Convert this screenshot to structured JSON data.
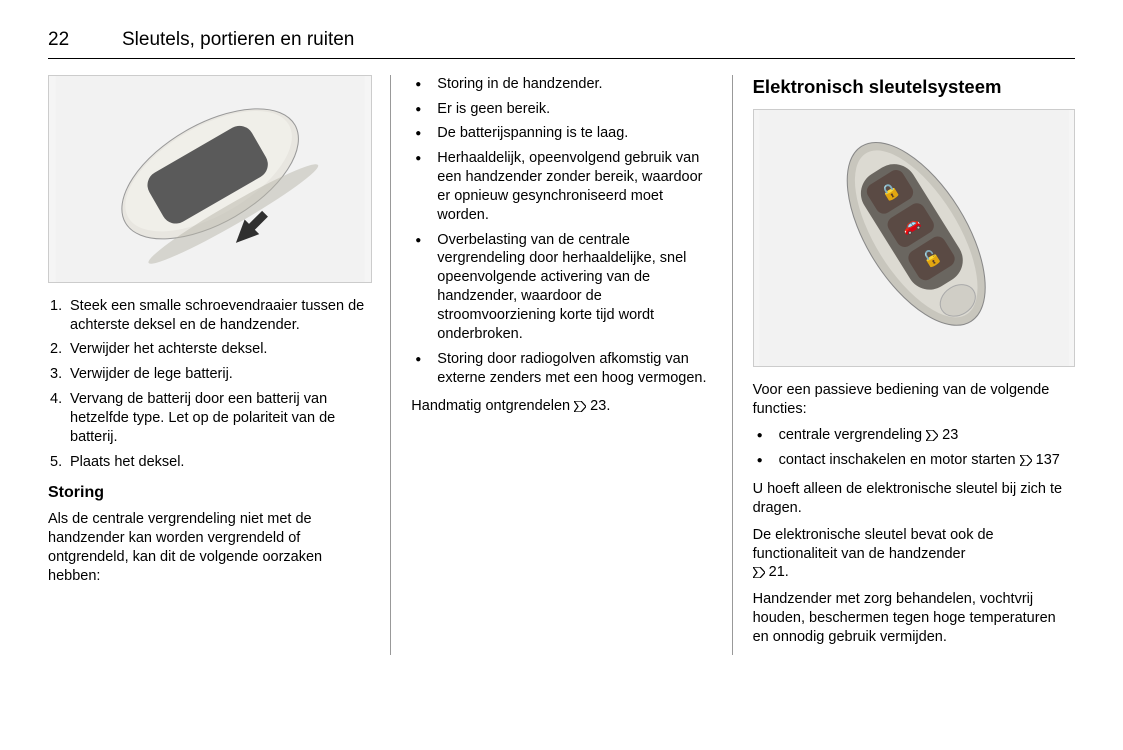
{
  "page_number": "22",
  "chapter_title": "Sleutels, portieren en ruiten",
  "col1": {
    "fig_alt": "key fob battery cover illustration",
    "steps": [
      "Steek een smalle schroeven­draaier tussen de achterste deksel en de handzender.",
      "Verwijder het achterste deksel.",
      "Verwijder de lege batterij.",
      "Vervang de batterij door een batterij van hetzelfde type. Let op de polariteit van de batterij.",
      "Plaats het deksel."
    ],
    "sub_heading": "Storing",
    "storing_intro": "Als de centrale vergrendeling niet met de handzender kan worden vergren­deld of ontgrendeld, kan dit de volgende oorzaken hebben:"
  },
  "col2": {
    "bullets": [
      "Storing in de handzender.",
      "Er is geen bereik.",
      "De batterijspanning is te laag.",
      "Herhaaldelijk, opeenvolgend gebruik van een handzender zonder bereik, waardoor er opnieuw gesynchroniseerd moet worden.",
      "Overbelasting van de centrale vergrendeling door herhaalde­lijke, snel opeenvolgende active­ring van de handzender, waar­door de stroomvoorziening korte tijd wordt onderbroken.",
      "Storing door radiogolven afkom­stig van externe zenders met een hoog vermogen."
    ],
    "tail_prefix": "Handmatig ontgrendelen ",
    "tail_ref": "23",
    "tail_suffix": "."
  },
  "col3": {
    "heading": "Elektronisch sleutelsysteem",
    "fig_alt": "electronic key with three buttons",
    "intro": "Voor een passieve bediening van de volgende functies:",
    "bullets": [
      {
        "text": "centrale vergrendeling ",
        "ref": "23"
      },
      {
        "text": "contact inschakelen en motor starten ",
        "ref": "137"
      }
    ],
    "p1": "U hoeft alleen de elektronische sleu­tel bij zich te dragen.",
    "p2_prefix": "De elektronische sleutel bevat ook de functionaliteit van de handzender ",
    "p2_ref": "21",
    "p2_suffix": ".",
    "p3": "Handzender met zorg behandelen, vochtvrij houden, beschermen tegen hoge temperaturen en onnodig gebruik vermijden."
  },
  "colors": {
    "fob_body": "#e8e6e0",
    "fob_shadow": "#b8b5a9",
    "fob_screen": "#5a5a5a",
    "ekey_body": "#c8c6bd",
    "ekey_dark": "#6a6660",
    "ekey_button": "#5a4a44",
    "arrow": "#303030"
  }
}
